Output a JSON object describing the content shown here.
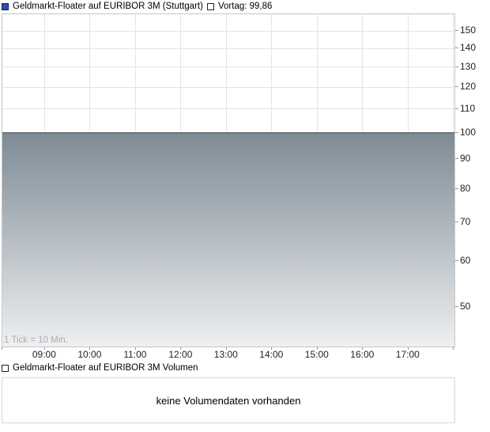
{
  "colors": {
    "series_icon_fill": "#2a50b4",
    "series_icon_border": "#131c4e",
    "area_top": "#7e8b96",
    "area_bottom": "#eef0f1",
    "price_line": "#6e757c",
    "gridline": "#e4e4e4",
    "chart_border": "#c6c6c6",
    "axis_text": "#222222",
    "note_text": "#a9adb3",
    "tick_color": "#999999",
    "box_border": "#d9d9d9"
  },
  "chart_data": [
    {
      "type": "area",
      "legend": "Geldmarkt-Floater auf EURIBOR 3M (Stuttgart)",
      "previous_close_legend": "Vortag: 99,86",
      "previous_close": 99.86,
      "series": [
        {
          "name": "Geldmarkt-Floater auf EURIBOR 3M (Stuttgart)",
          "shape": "constant",
          "value": 99.86
        }
      ],
      "y_axis": {
        "side": "right",
        "scale": "log",
        "ticks": [
          150,
          140,
          130,
          120,
          110,
          100,
          90,
          80,
          70,
          60,
          50
        ],
        "ylim": [
          42.6,
          160.2
        ]
      },
      "x_axis": {
        "xlim_hours": [
          8.08,
          18.03
        ],
        "grid_hours": [
          9,
          10,
          11,
          12,
          13,
          14,
          15,
          16,
          17,
          18
        ],
        "ticks": [
          {
            "h": 9,
            "label": "09:00"
          },
          {
            "h": 10,
            "label": "10:00"
          },
          {
            "h": 11,
            "label": "11:00"
          },
          {
            "h": 12,
            "label": "12:00"
          },
          {
            "h": 13,
            "label": "13:00"
          },
          {
            "h": 14,
            "label": "14:00"
          },
          {
            "h": 15,
            "label": "15:00"
          },
          {
            "h": 16,
            "label": "16:00"
          },
          {
            "h": 17,
            "label": "17:00"
          }
        ]
      },
      "note": "1 Tick = 10 Min.",
      "grid": true,
      "legend_position": "top-left"
    },
    {
      "type": "bar",
      "legend": "Geldmarkt-Floater auf EURIBOR 3M Volumen",
      "values": [],
      "message": "keine Volumendaten vorhanden"
    }
  ]
}
